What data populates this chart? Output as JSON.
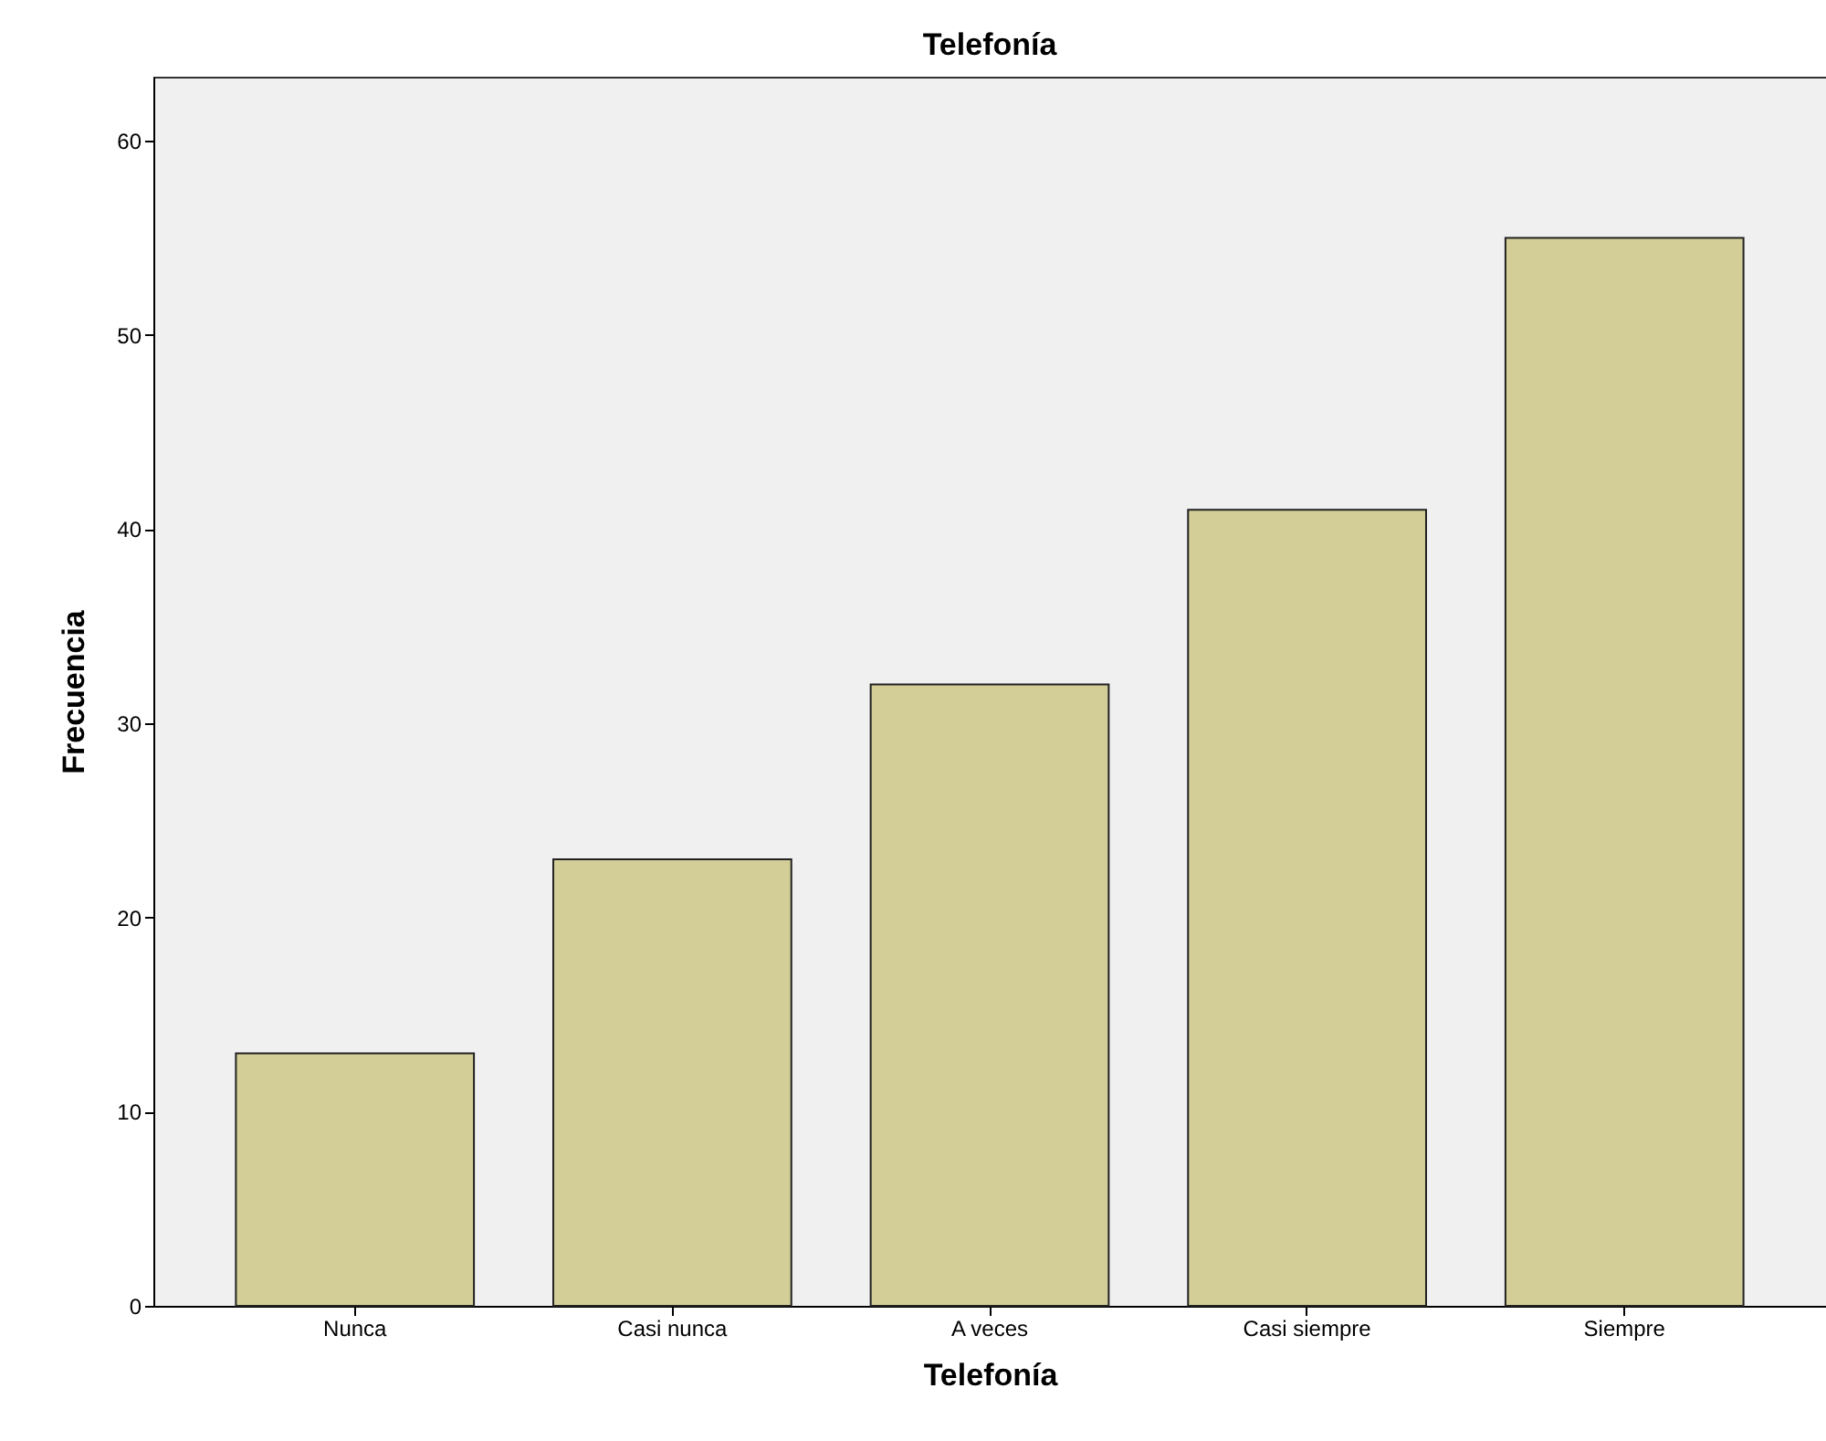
{
  "chart_data": {
    "type": "bar",
    "title": "Telefonía",
    "xlabel": "Telefonía",
    "ylabel": "Frecuencia",
    "categories": [
      "Nunca",
      "Casi nunca",
      "A veces",
      "Casi siempre",
      "Siempre"
    ],
    "values": [
      13,
      23,
      32,
      41,
      55
    ],
    "color": "#d3ce97",
    "ylim": [
      0,
      63.3
    ],
    "yticks": [
      0,
      10,
      20,
      30,
      40,
      50,
      60
    ],
    "grid": false
  }
}
